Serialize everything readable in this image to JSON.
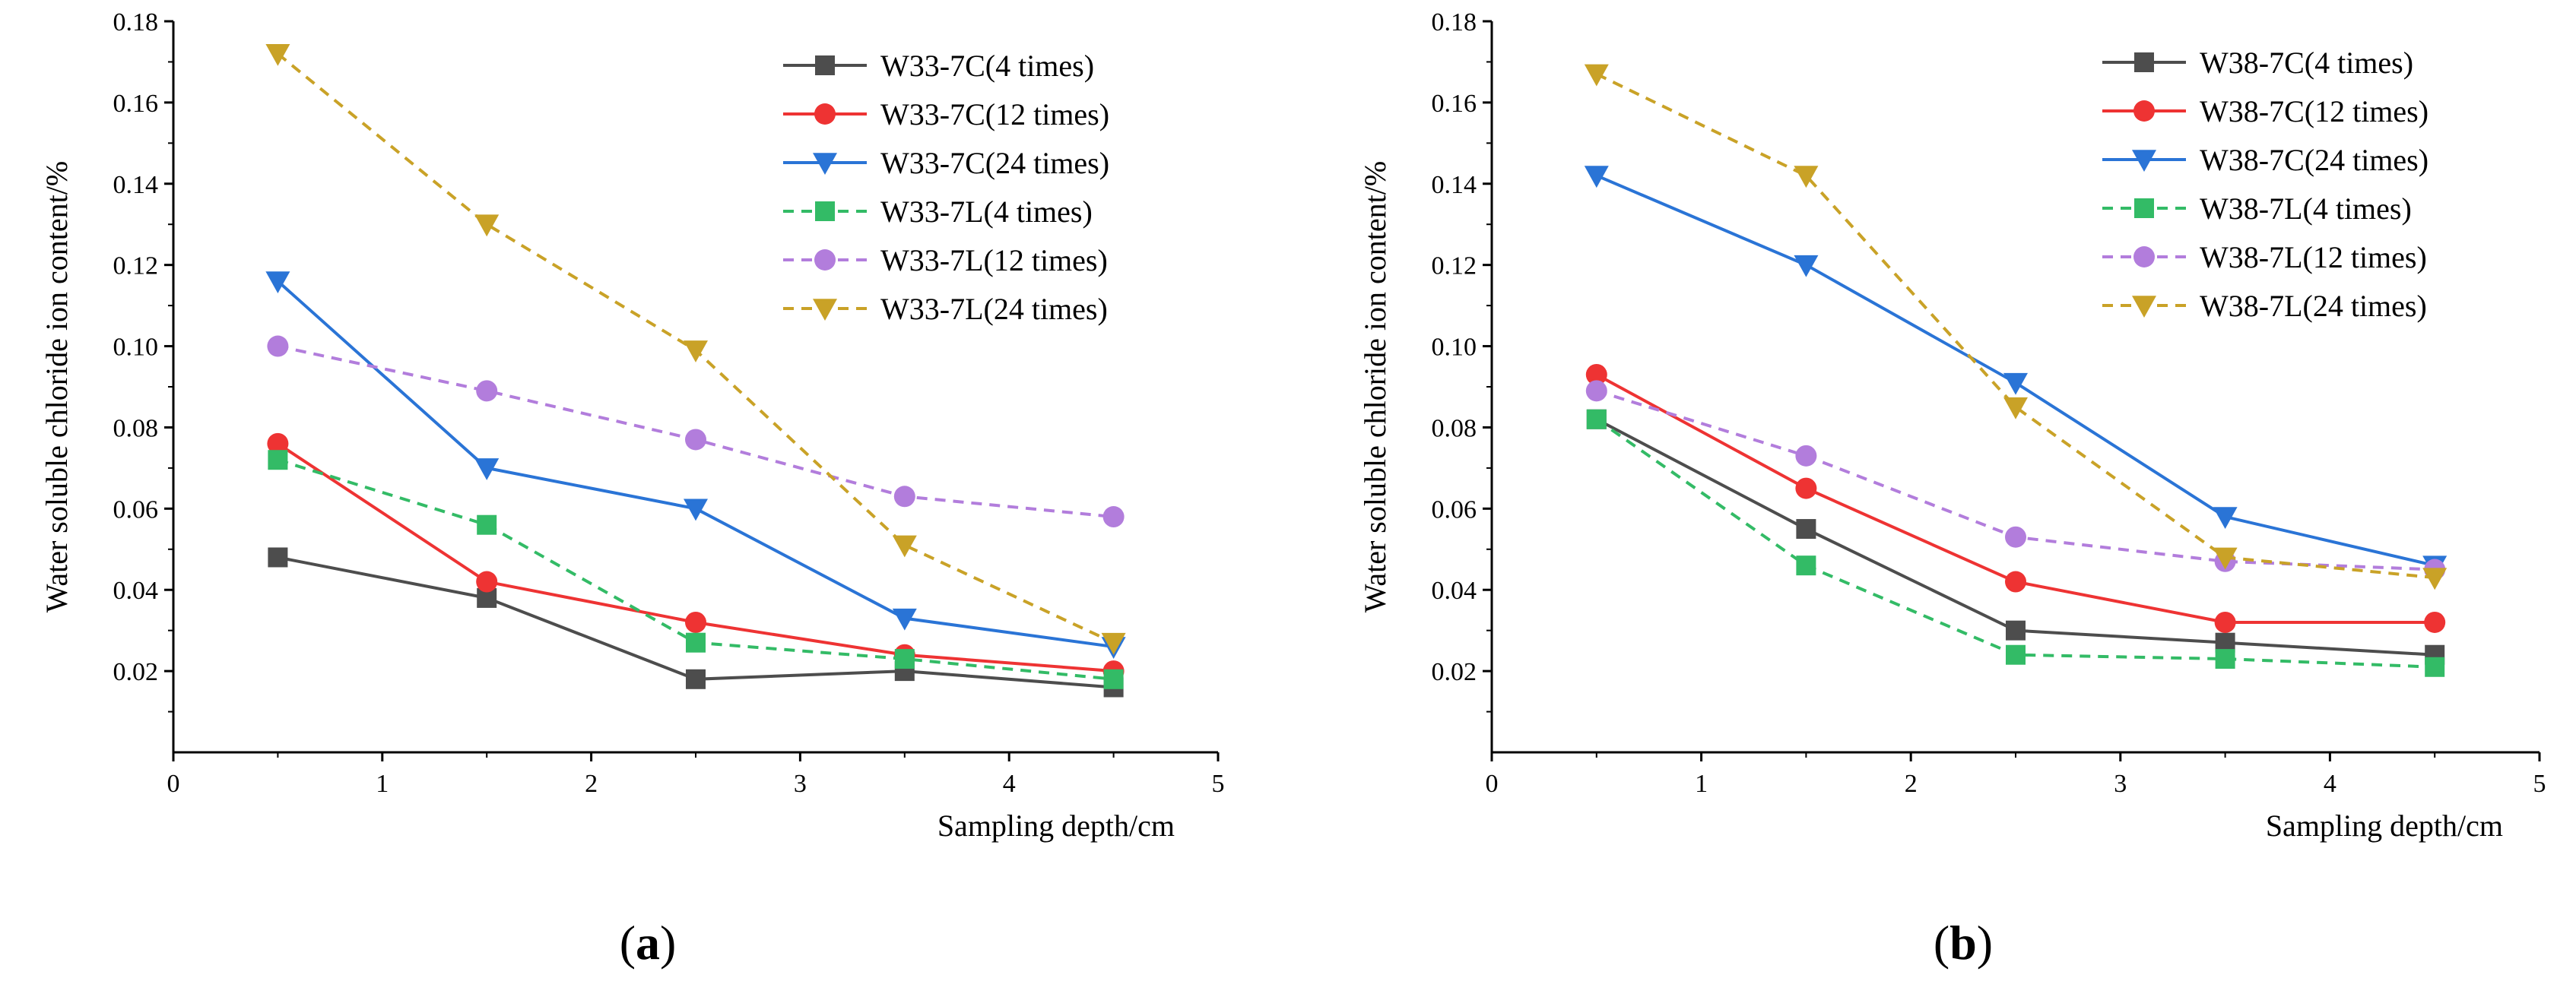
{
  "chart_data": [
    {
      "type": "line",
      "caption": "(a)",
      "caption_letter": "a",
      "title": "",
      "xlabel": "Sampling depth/cm",
      "ylabel": "Water soluble chloride ion content/%",
      "xlim": [
        0,
        5
      ],
      "ylim": [
        0.0,
        0.18
      ],
      "x_ticks": [
        "0",
        "1",
        "2",
        "3",
        "4",
        "5"
      ],
      "y_ticks": [
        "0.02",
        "0.04",
        "0.06",
        "0.08",
        "0.10",
        "0.12",
        "0.14",
        "0.16",
        "0.18"
      ],
      "x": [
        0.5,
        1.5,
        2.5,
        3.5,
        4.5
      ],
      "legend_position": "top-right",
      "series": [
        {
          "name": "W33-7C(4 times)",
          "color": "#4d4d4d",
          "marker": "square",
          "dash": "solid",
          "values": [
            0.048,
            0.038,
            0.018,
            0.02,
            0.016
          ]
        },
        {
          "name": "W33-7C(12 times)",
          "color": "#ee3333",
          "marker": "circle",
          "dash": "solid",
          "values": [
            0.076,
            0.042,
            0.032,
            0.024,
            0.02
          ]
        },
        {
          "name": "W33-7C(24 times)",
          "color": "#2a74d6",
          "marker": "triangle-down",
          "dash": "solid",
          "values": [
            0.116,
            0.07,
            0.06,
            0.033,
            0.026
          ]
        },
        {
          "name": "W33-7L(4 times)",
          "color": "#33bb66",
          "marker": "square",
          "dash": "dashed",
          "values": [
            0.072,
            0.056,
            0.027,
            0.023,
            0.018
          ]
        },
        {
          "name": "W33-7L(12 times)",
          "color": "#b27ddc",
          "marker": "circle",
          "dash": "dashed",
          "values": [
            0.1,
            0.089,
            0.077,
            0.063,
            0.058
          ]
        },
        {
          "name": "W33-7L(24 times)",
          "color": "#c9a227",
          "marker": "triangle-down",
          "dash": "dashed",
          "values": [
            0.172,
            0.13,
            0.099,
            0.051,
            0.027
          ]
        }
      ]
    },
    {
      "type": "line",
      "caption": "(b)",
      "caption_letter": "b",
      "title": "",
      "xlabel": "Sampling depth/cm",
      "ylabel": "Water soluble chloride ion content/%",
      "xlim": [
        0,
        5
      ],
      "ylim": [
        0.0,
        0.18
      ],
      "x_ticks": [
        "0",
        "1",
        "2",
        "3",
        "4",
        "5"
      ],
      "y_ticks": [
        "0.02",
        "0.04",
        "0.06",
        "0.08",
        "0.10",
        "0.12",
        "0.14",
        "0.16",
        "0.18"
      ],
      "x": [
        0.5,
        1.5,
        2.5,
        3.5,
        4.5
      ],
      "legend_position": "top-right",
      "series": [
        {
          "name": "W38-7C(4 times)",
          "color": "#4d4d4d",
          "marker": "square",
          "dash": "solid",
          "values": [
            0.082,
            0.055,
            0.03,
            0.027,
            0.024
          ]
        },
        {
          "name": "W38-7C(12 times)",
          "color": "#ee3333",
          "marker": "circle",
          "dash": "solid",
          "values": [
            0.093,
            0.065,
            0.042,
            0.032,
            0.032
          ]
        },
        {
          "name": "W38-7C(24 times)",
          "color": "#2a74d6",
          "marker": "triangle-down",
          "dash": "solid",
          "values": [
            0.142,
            0.12,
            0.091,
            0.058,
            0.046
          ]
        },
        {
          "name": "W38-7L(4 times)",
          "color": "#33bb66",
          "marker": "square",
          "dash": "dashed",
          "values": [
            0.082,
            0.046,
            0.024,
            0.023,
            0.021
          ]
        },
        {
          "name": "W38-7L(12 times)",
          "color": "#b27ddc",
          "marker": "circle",
          "dash": "dashed",
          "values": [
            0.089,
            0.073,
            0.053,
            0.047,
            0.045
          ]
        },
        {
          "name": "W38-7L(24 times)",
          "color": "#c9a227",
          "marker": "triangle-down",
          "dash": "dashed",
          "values": [
            0.167,
            0.142,
            0.085,
            0.048,
            0.043
          ]
        }
      ]
    }
  ]
}
